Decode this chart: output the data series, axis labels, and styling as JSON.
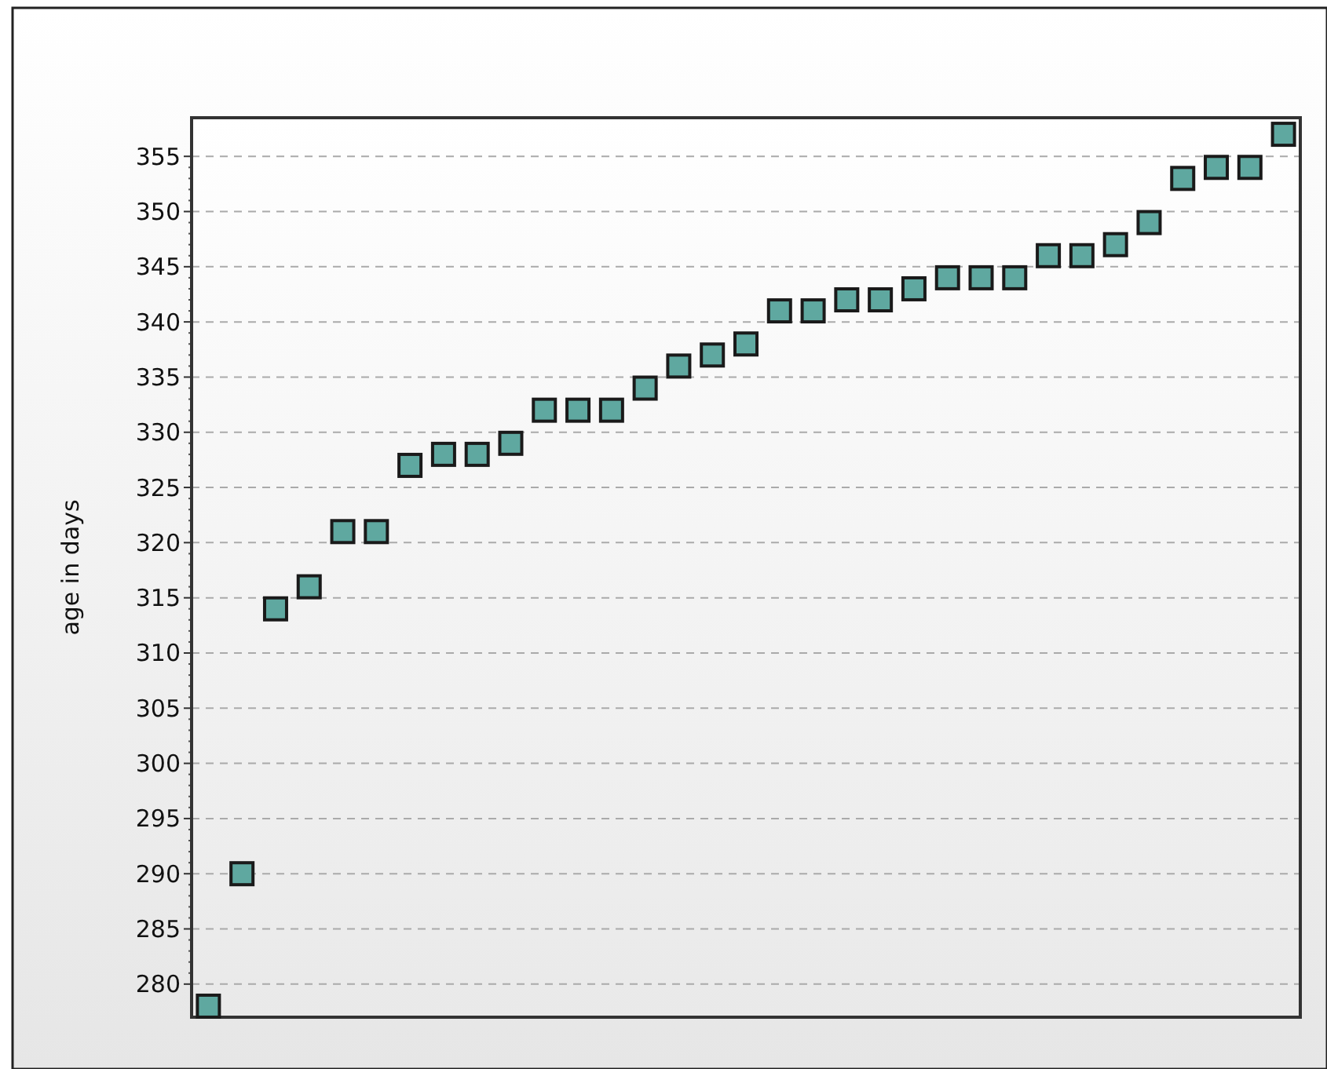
{
  "chart_data": {
    "type": "scatter",
    "ylabel": "age in days",
    "categories": [
      null,
      null,
      null,
      null,
      null,
      null,
      null,
      null,
      null,
      null,
      null,
      null,
      null,
      null,
      null,
      null,
      null,
      null,
      null,
      null,
      null,
      null,
      null,
      null,
      null,
      null,
      null,
      null,
      null,
      null,
      null,
      null,
      null
    ],
    "values": [
      278,
      290,
      314,
      316,
      321,
      321,
      327,
      328,
      328,
      329,
      332,
      332,
      332,
      334,
      336,
      337,
      338,
      341,
      341,
      342,
      342,
      343,
      344,
      344,
      344,
      346,
      346,
      347,
      349,
      353,
      354,
      354,
      357
    ],
    "color": "#5fa8a0",
    "marker": "square",
    "ylim": [
      277,
      358.5
    ],
    "yticks": [
      280,
      285,
      290,
      295,
      300,
      305,
      310,
      315,
      320,
      325,
      330,
      335,
      340,
      345,
      350,
      355
    ],
    "grid": "y"
  }
}
